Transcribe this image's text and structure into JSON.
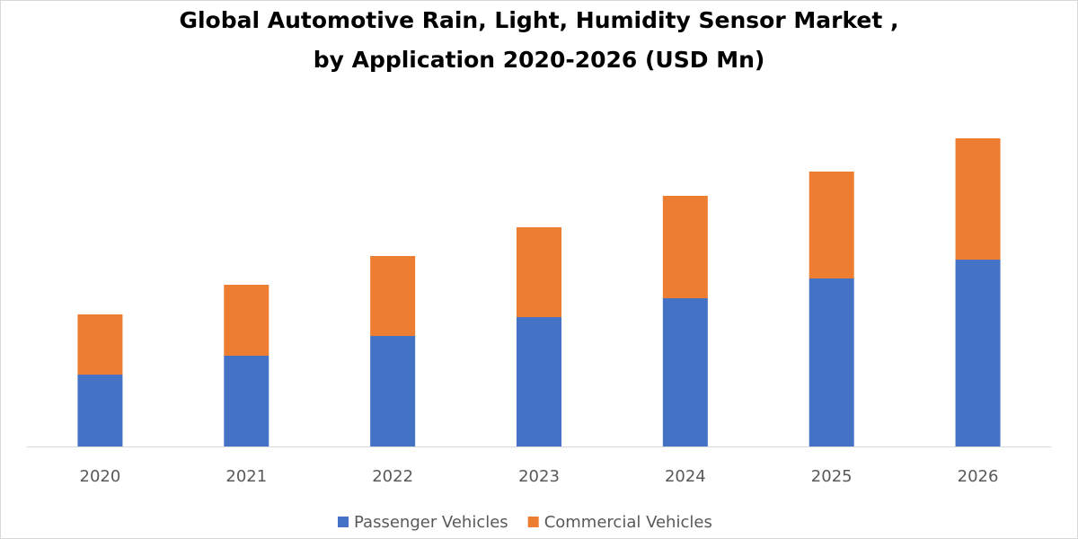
{
  "chart_data": {
    "type": "stacked_bar",
    "title_lines": [
      "Global Automotive Rain, Light, Humidity Sensor Market ,",
      "by Application 2020-2026 (USD Mn)"
    ],
    "categories": [
      "2020",
      "2021",
      "2022",
      "2023",
      "2024",
      "2025",
      "2026"
    ],
    "series": [
      {
        "name": "Passenger Vehicles",
        "color": "#4472c4",
        "values": [
          80,
          101,
          123,
          144,
          165,
          187,
          208
        ]
      },
      {
        "name": "Commercial Vehicles",
        "color": "#ed7d31",
        "values": [
          67,
          79,
          89,
          100,
          114,
          119,
          135
        ]
      }
    ],
    "legend": "bottom"
  }
}
